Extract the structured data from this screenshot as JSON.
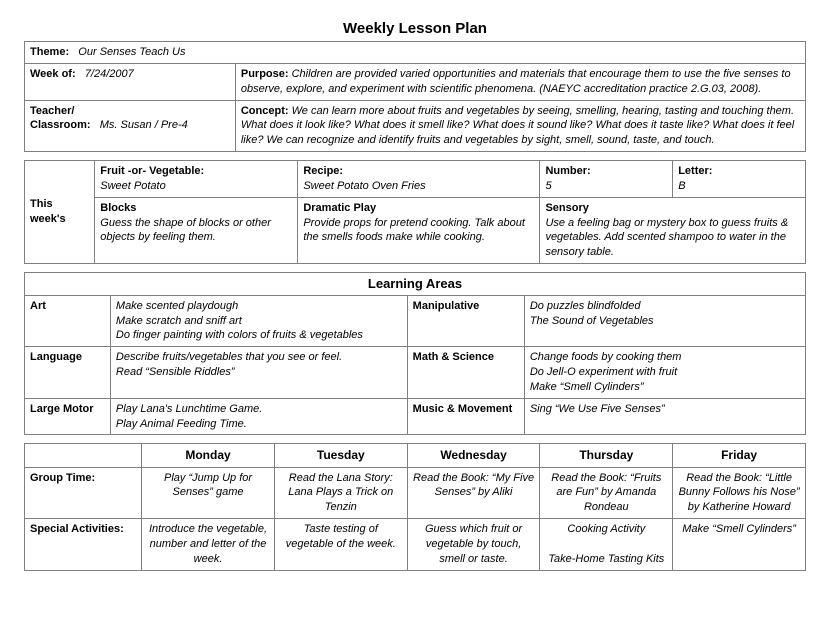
{
  "title": "Weekly Lesson Plan",
  "header": {
    "theme_label": "Theme:",
    "theme_value": "Our Senses Teach Us",
    "week_label": "Week of:",
    "week_value": "7/24/2007",
    "purpose_label": "Purpose:",
    "purpose_value": "Children are provided varied opportunities and materials that encourage them to use the five senses to observe, explore, and experiment with scientific phenomena. (NAEYC accreditation practice 2.G.03, 2008).",
    "teacher_label1": "Teacher/",
    "teacher_label2": "Classroom:",
    "teacher_value": "Ms. Susan / Pre-4",
    "concept_label": "Concept:",
    "concept_value": "We can learn more about fruits and vegetables by seeing, smelling, hearing, tasting and touching them. What does it look like? What does it smell like? What does it sound like? What does it taste like? What does it feel like? We can recognize and identify fruits and vegetables by sight, smell, sound, taste, and touch."
  },
  "weeks": {
    "side_label": "This week's",
    "cells": {
      "fruit_label": "Fruit -or- Vegetable:",
      "fruit_value": "Sweet Potato",
      "recipe_label": "Recipe:",
      "recipe_value": "Sweet Potato Oven Fries",
      "number_label": "Number:",
      "number_value": "5",
      "letter_label": "Letter:",
      "letter_value": "B",
      "blocks_label": "Blocks",
      "blocks_value": "Guess the shape of blocks or other objects by feeling them.",
      "dramatic_label": "Dramatic Play",
      "dramatic_value": "Provide props for pretend cooking. Talk about the smells foods make while cooking.",
      "sensory_label": "Sensory",
      "sensory_value": "Use a feeling bag or mystery box to guess fruits & vegetables. Add scented shampoo to water in the sensory table."
    }
  },
  "learning": {
    "title": "Learning Areas",
    "rows": [
      {
        "l_label": "Art",
        "l_val": "Make scented playdough\nMake scratch and sniff art\nDo finger painting with colors of fruits & vegetables",
        "r_label": "Manipulative",
        "r_val": "Do puzzles blindfolded\nThe Sound of Vegetables"
      },
      {
        "l_label": "Language",
        "l_val": "Describe fruits/vegetables that you see or feel.\nRead “Sensible Riddles”",
        "r_label": "Math & Science",
        "r_val": "Change foods by cooking them\nDo Jell-O experiment with fruit\nMake “Smell Cylinders”"
      },
      {
        "l_label": "Large Motor",
        "l_val": "Play Lana's Lunchtime Game.\nPlay Animal Feeding Time.",
        "r_label": "Music & Movement",
        "r_val": "Sing “We Use Five Senses”"
      }
    ]
  },
  "schedule": {
    "days": [
      "Monday",
      "Tuesday",
      "Wednesday",
      "Thursday",
      "Friday"
    ],
    "rows": [
      {
        "label": "Group Time:",
        "cells": [
          "Play “Jump Up for Senses” game",
          "Read the Lana Story: Lana Plays a Trick on Tenzin",
          "Read the Book: “My Five Senses” by Aliki",
          "Read the Book: “Fruits are Fun” by Amanda Rondeau",
          "Read the Book: “Little Bunny Follows his Nose” by Katherine Howard"
        ]
      },
      {
        "label": "Special Activities:",
        "cells": [
          "Introduce the vegetable, number and letter of the week.",
          "Taste testing of vegetable of the week.",
          "Guess which fruit or vegetable by touch, smell or taste.",
          "Cooking Activity\n\nTake-Home Tasting Kits",
          "Make “Smell Cylinders”"
        ]
      }
    ]
  },
  "style": {
    "border_color": "#808080",
    "font_family": "Arial",
    "title_fontsize_pt": 15,
    "body_fontsize_pt": 11
  }
}
